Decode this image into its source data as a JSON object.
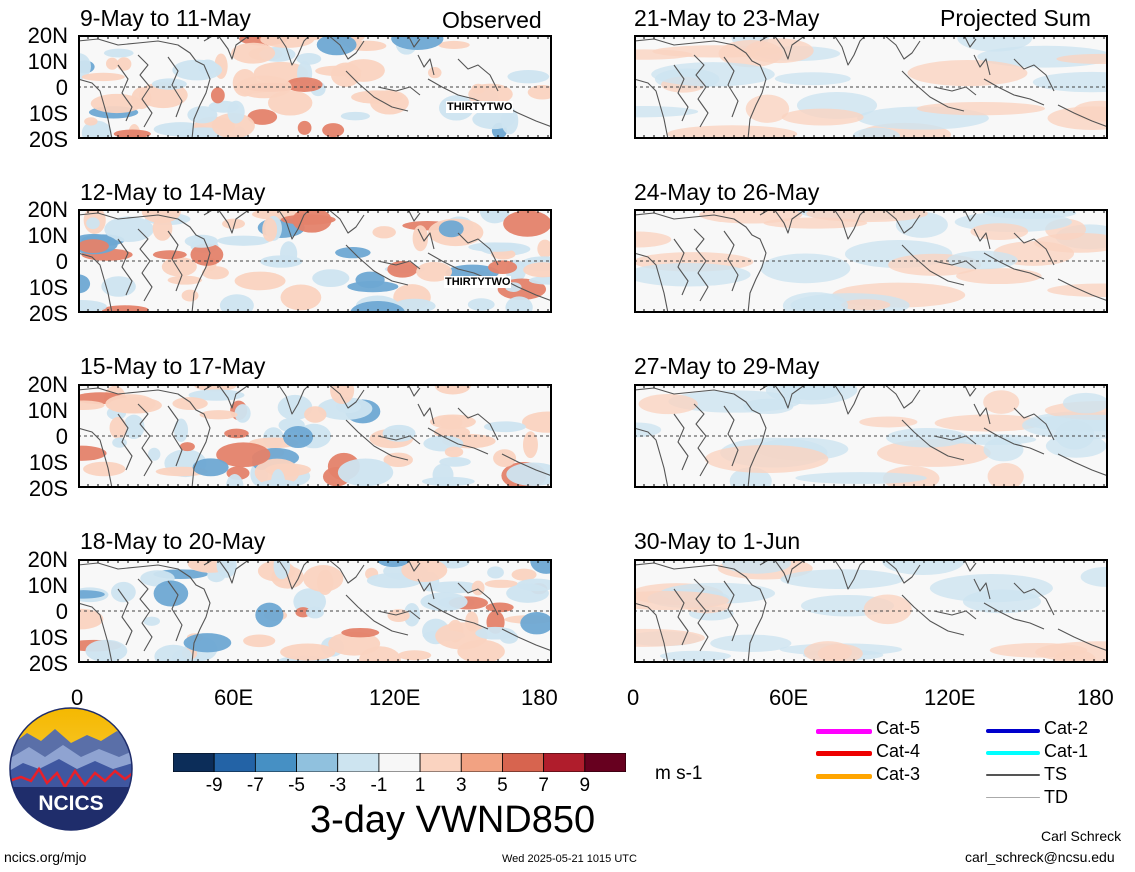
{
  "panels": [
    {
      "title": "9-May to 11-May",
      "corner": "Observed",
      "storm": "THIRTYTWO"
    },
    {
      "title": "21-May to 23-May",
      "corner": "Projected Sum",
      "storm": ""
    },
    {
      "title": "12-May to 14-May",
      "corner": "",
      "storm": "THIRTYTWO"
    },
    {
      "title": "24-May to 26-May",
      "corner": "",
      "storm": ""
    },
    {
      "title": "15-May to 17-May",
      "corner": "",
      "storm": ""
    },
    {
      "title": "27-May to 29-May",
      "corner": "",
      "storm": ""
    },
    {
      "title": "18-May to 20-May",
      "corner": "",
      "storm": ""
    },
    {
      "title": "30-May to 1-Jun",
      "corner": "",
      "storm": ""
    }
  ],
  "y_ticks": [
    "20N",
    "10N",
    "0",
    "10S",
    "20S"
  ],
  "x_ticks": [
    "0",
    "60E",
    "120E",
    "180"
  ],
  "colorbar": {
    "colors": [
      "#0c2d59",
      "#2363a6",
      "#4690c4",
      "#90c1de",
      "#cde4f0",
      "#f7f7f7",
      "#fad3c0",
      "#f2a282",
      "#d7644f",
      "#b01d2c",
      "#67001f"
    ],
    "tick_labels": [
      "-9",
      "-7",
      "-5",
      "-3",
      "-1",
      "1",
      "3",
      "5",
      "7",
      "9"
    ],
    "units": "m s-1"
  },
  "main_title": "3-day VWND850",
  "legend": [
    {
      "label": "Cat-5",
      "color": "#ff00ff"
    },
    {
      "label": "Cat-4",
      "color": "#ee0000"
    },
    {
      "label": "Cat-3",
      "color": "#ffa500"
    },
    {
      "label": "Cat-2",
      "color": "#0000cc"
    },
    {
      "label": "Cat-1",
      "color": "#00ffff"
    },
    {
      "label": "TS",
      "color": "#555555"
    },
    {
      "label": "TD",
      "color": "#aaaaaa"
    }
  ],
  "footer": {
    "left": "ncics.org/mjo",
    "center": "Wed 2025-05-21 1015 UTC",
    "author": "Carl Schreck",
    "email": "carl_schreck@ncsu.edu"
  },
  "logo_text": "NCICS"
}
